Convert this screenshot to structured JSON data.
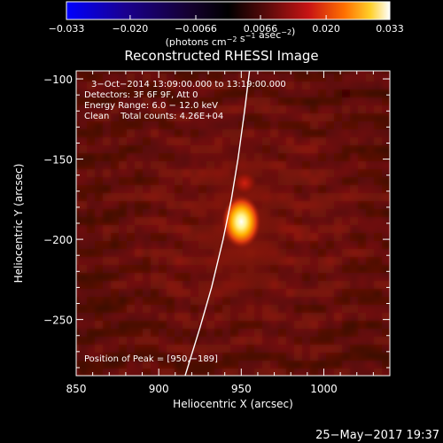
{
  "chart_data": {
    "type": "heatmap",
    "title": "Reconstructed RHESSI Image",
    "xlabel": "Heliocentric X (arcsec)",
    "ylabel": "Heliocentric Y (arcsec)",
    "xlim": [
      850,
      1040
    ],
    "ylim": [
      -285,
      -95
    ],
    "x_ticks": [
      850,
      900,
      950,
      1000
    ],
    "x_tick_labels": [
      "850",
      "900",
      "950",
      "1000"
    ],
    "y_ticks": [
      -100,
      -150,
      -200,
      -250
    ],
    "y_tick_labels": [
      "−100",
      "−150",
      "−200",
      "−250"
    ],
    "colorbar": {
      "min": -0.033,
      "max": 0.033,
      "ticks": [
        -0.033,
        -0.02,
        -0.0066,
        0.0066,
        0.02,
        0.033
      ],
      "tick_labels": [
        "−0.033",
        "−0.020",
        "−0.0066",
        "0.0066",
        "0.020",
        "0.033"
      ],
      "label_prefix": "(photons cm",
      "label_exp1": "−2",
      "label_mid1": " s",
      "label_exp2": "−1",
      "label_mid2": " asec",
      "label_exp3": "−2",
      "label_suffix": ")"
    },
    "annotations": [
      "3−Oct−2014 13:09:00.000 to 13:19:00.000",
      "Detectors: 3F 6F 9F, Att 0",
      "Energy Range: 6.0 − 12.0 keV",
      "Clean    Total counts: 4.26E+04"
    ],
    "peak_label": "Position of Peak = [950,−189]",
    "peak": {
      "x": 950,
      "y": -189,
      "value": 0.033
    },
    "secondary_source": {
      "x": 952,
      "y": -165,
      "value": 0.012
    },
    "limb_curve": [
      [
        955,
        -95
      ],
      [
        952,
        -120
      ],
      [
        948,
        -150
      ],
      [
        944,
        -175
      ],
      [
        939,
        -200
      ],
      [
        932,
        -230
      ],
      [
        925,
        -255
      ],
      [
        916,
        -285
      ]
    ],
    "date_stamp": "25−May−2017 19:37"
  }
}
